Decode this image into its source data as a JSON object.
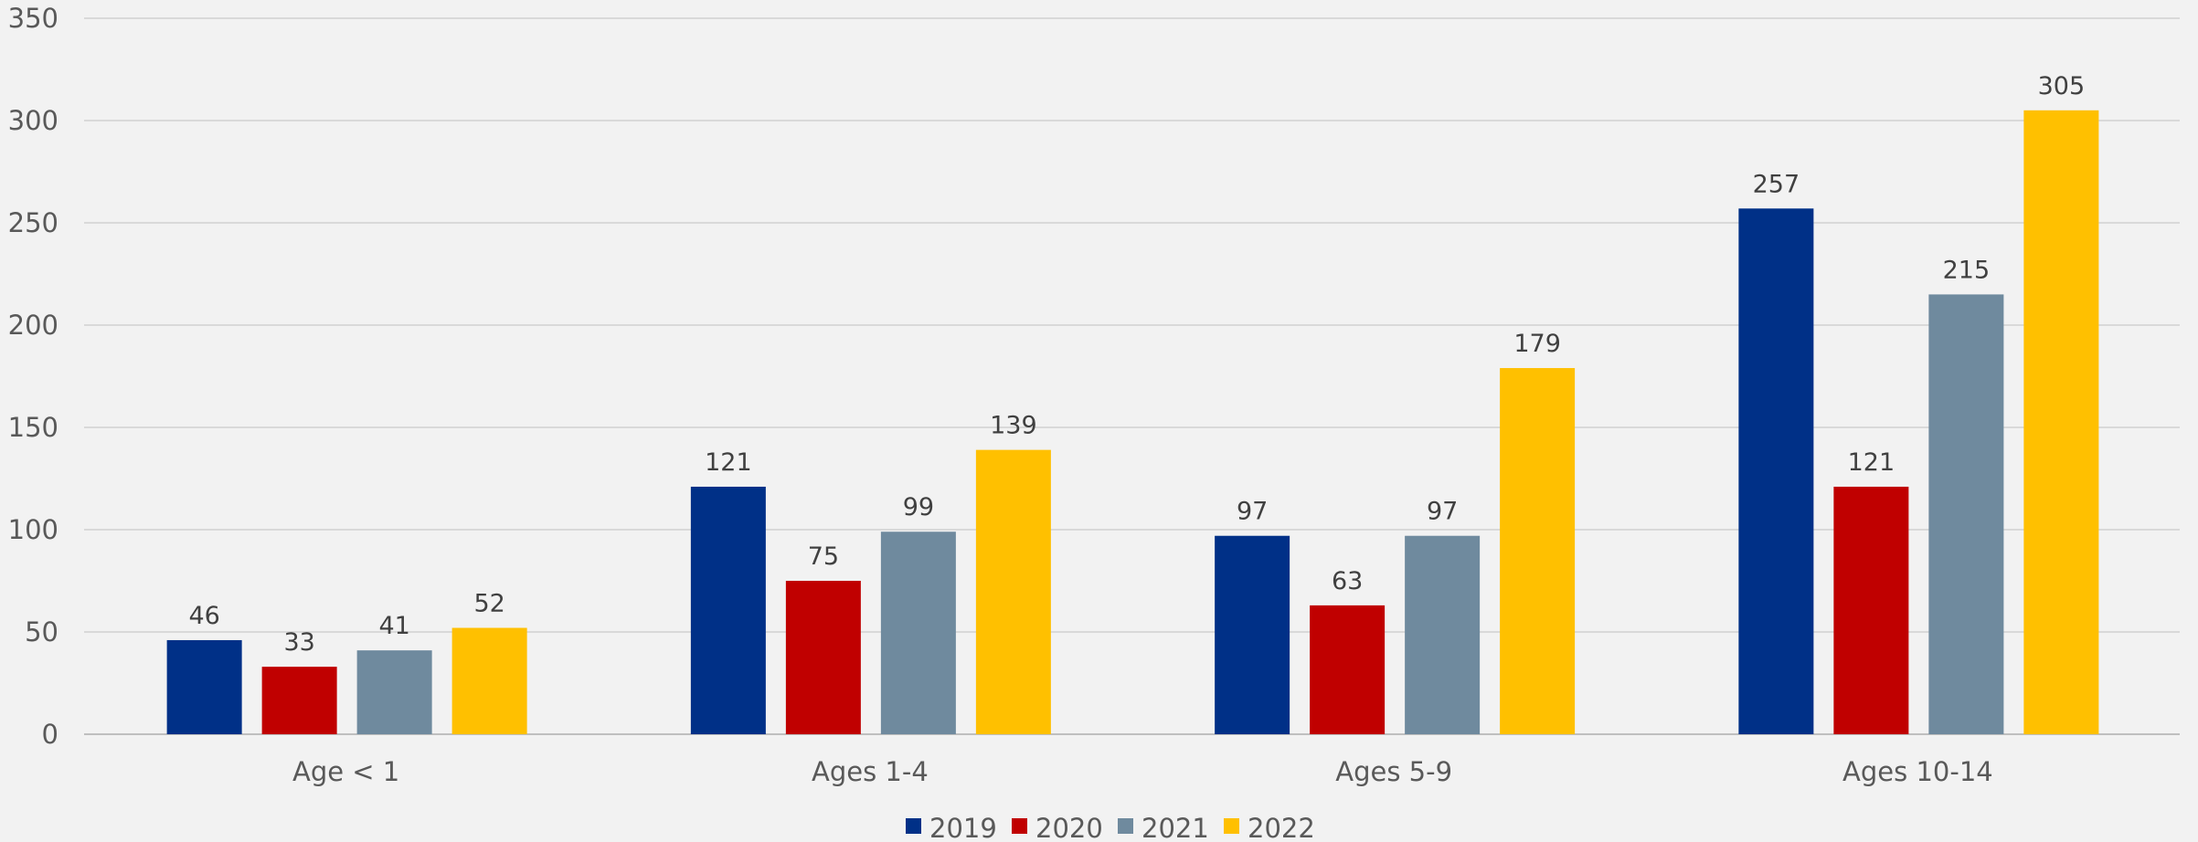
{
  "chart_data": {
    "type": "bar",
    "title": "",
    "xlabel": "",
    "ylabel": "",
    "categories": [
      "Age < 1",
      "Ages 1-4",
      "Ages 5-9",
      "Ages 10-14"
    ],
    "series": [
      {
        "name": "2019",
        "color": "#003087",
        "values": [
          46,
          121,
          97,
          257
        ]
      },
      {
        "name": "2020",
        "color": "#c00000",
        "values": [
          33,
          75,
          63,
          121
        ]
      },
      {
        "name": "2021",
        "color": "#6f8a9e",
        "values": [
          41,
          99,
          97,
          215
        ]
      },
      {
        "name": "2022",
        "color": "#ffc000",
        "values": [
          52,
          139,
          179,
          305
        ]
      }
    ],
    "ylim": [
      0,
      350
    ],
    "yticks": [
      0,
      50,
      100,
      150,
      200,
      250,
      300,
      350
    ],
    "grid": true,
    "legend_position": "bottom-center",
    "data_labels": true
  }
}
